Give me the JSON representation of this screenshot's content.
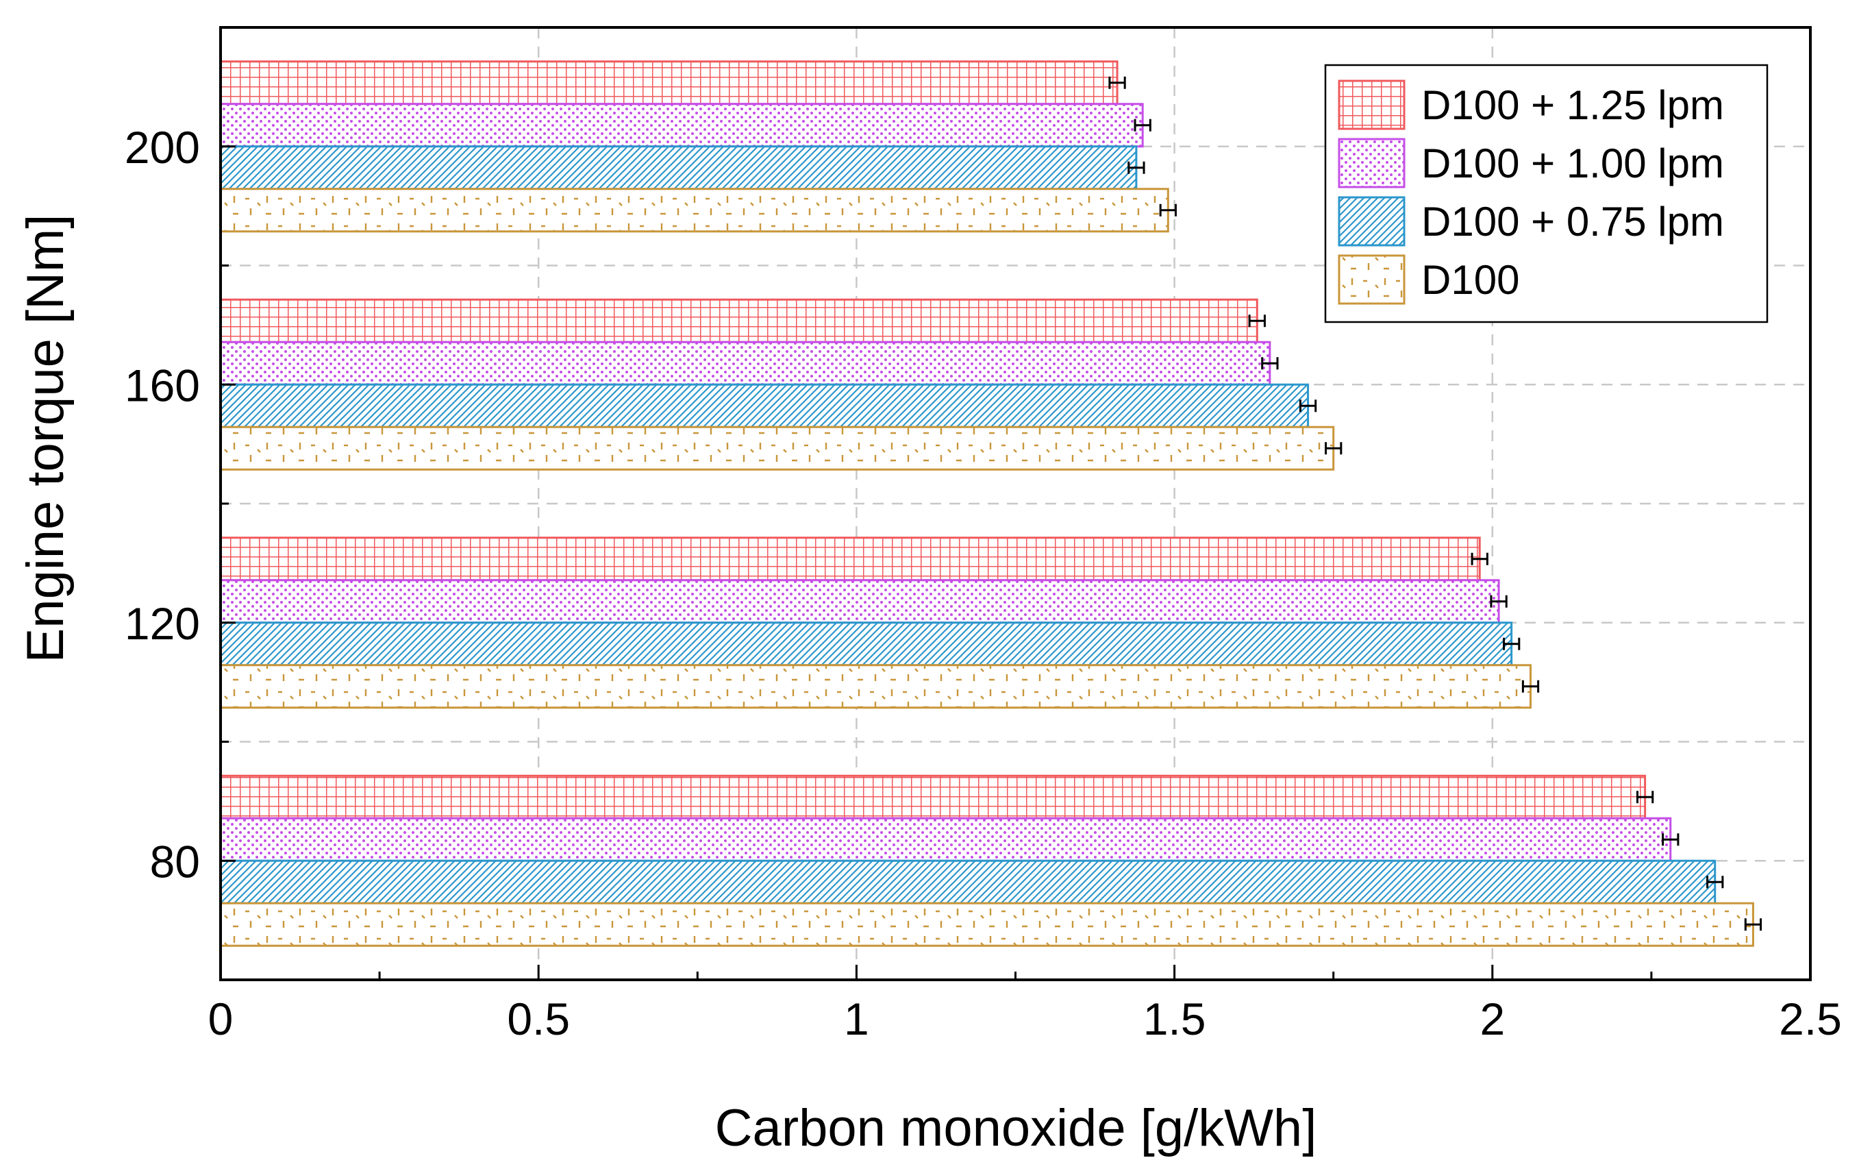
{
  "chart_data": {
    "type": "bar",
    "orientation": "horizontal",
    "xlabel": "Carbon monoxide [g/kWh]",
    "ylabel": "Engine torque [Nm]",
    "xlim": [
      0,
      2.5
    ],
    "x_ticks": [
      "0",
      "0.5",
      "1",
      "1.5",
      "2",
      "2.5"
    ],
    "x_tick_values": [
      0,
      0.5,
      1,
      1.5,
      2,
      2.5
    ],
    "ylim": [
      60,
      220
    ],
    "y_ticks": [
      "80",
      "120",
      "160",
      "200"
    ],
    "y_tick_values": [
      80,
      120,
      160,
      200
    ],
    "categories": [
      80,
      120,
      160,
      200
    ],
    "grid": true,
    "legend_position": "top-right",
    "series": [
      {
        "name": "D100 + 1.25 lpm",
        "color": "#f0595c",
        "pattern": "grid",
        "values": [
          2.24,
          1.98,
          1.63,
          1.41
        ],
        "errors": [
          0.012,
          0.012,
          0.012,
          0.012
        ]
      },
      {
        "name": "D100 + 1.00 lpm",
        "color": "#c64ee8",
        "pattern": "dots",
        "values": [
          2.28,
          2.01,
          1.65,
          1.45
        ],
        "errors": [
          0.012,
          0.012,
          0.012,
          0.012
        ]
      },
      {
        "name": "D100 + 0.75 lpm",
        "color": "#2b97cc",
        "pattern": "diagonal",
        "values": [
          2.35,
          2.03,
          1.71,
          1.44
        ],
        "errors": [
          0.012,
          0.012,
          0.012,
          0.012
        ]
      },
      {
        "name": "D100",
        "color": "#c9963a",
        "pattern": "dash",
        "values": [
          2.41,
          2.06,
          1.75,
          1.49
        ],
        "errors": [
          0.012,
          0.012,
          0.012,
          0.012
        ]
      }
    ]
  }
}
